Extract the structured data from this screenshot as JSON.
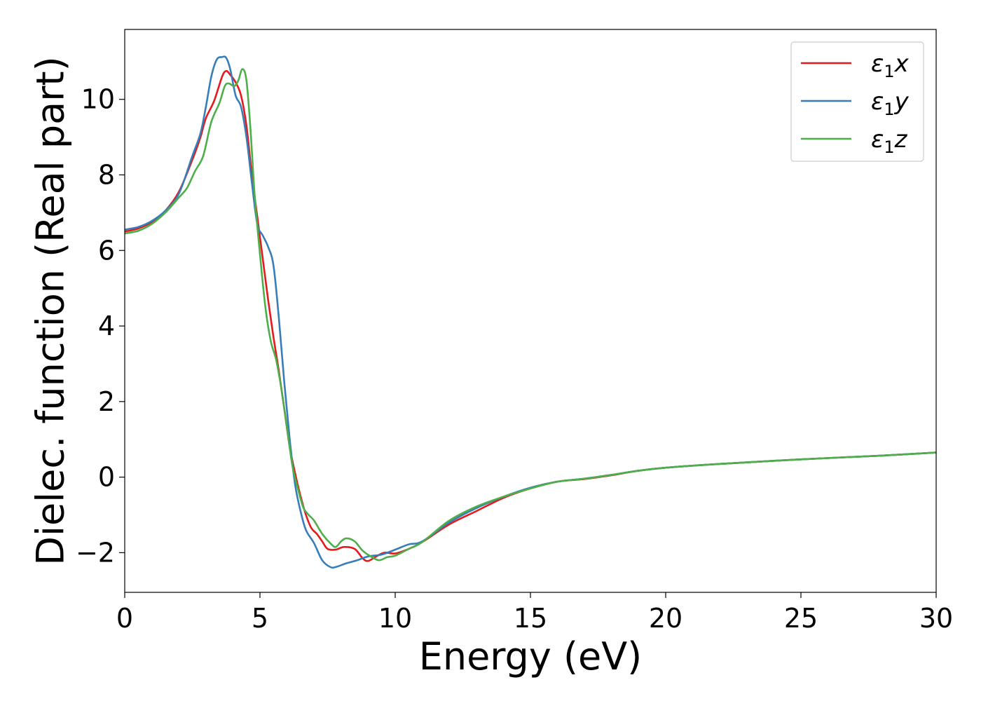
{
  "chart_data": {
    "type": "line",
    "title": "",
    "xlabel": "Energy (eV)",
    "ylabel": "Dielec. function (Real part)",
    "xlim": [
      0,
      30
    ],
    "ylim": [
      -3.05,
      11.85
    ],
    "xticks": [
      0,
      5,
      10,
      15,
      20,
      25,
      30
    ],
    "xtick_labels": [
      "0",
      "5",
      "10",
      "15",
      "20",
      "25",
      "30"
    ],
    "yticks": [
      -2,
      0,
      2,
      4,
      6,
      8,
      10
    ],
    "ytick_labels": [
      "−2",
      "0",
      "2",
      "4",
      "6",
      "8",
      "10"
    ],
    "grid": false,
    "legend": "top-right",
    "series": [
      {
        "name": "ε₁x",
        "label_base": "ε",
        "label_sub": "1",
        "label_suffix": "x",
        "color": "#e41a1c",
        "points": [
          [
            0,
            6.5
          ],
          [
            0.5,
            6.58
          ],
          [
            1,
            6.75
          ],
          [
            1.5,
            7.05
          ],
          [
            2,
            7.55
          ],
          [
            2.5,
            8.4
          ],
          [
            2.8,
            9.0
          ],
          [
            3.0,
            9.5
          ],
          [
            3.3,
            9.95
          ],
          [
            3.6,
            10.6
          ],
          [
            3.75,
            10.75
          ],
          [
            3.9,
            10.65
          ],
          [
            4.1,
            10.45
          ],
          [
            4.3,
            10.1
          ],
          [
            4.5,
            9.3
          ],
          [
            4.7,
            8.0
          ],
          [
            4.9,
            6.9
          ],
          [
            5.1,
            5.8
          ],
          [
            5.3,
            4.7
          ],
          [
            5.5,
            3.7
          ],
          [
            5.7,
            2.8
          ],
          [
            5.9,
            1.8
          ],
          [
            6.1,
            0.8
          ],
          [
            6.3,
            0.1
          ],
          [
            6.5,
            -0.5
          ],
          [
            6.7,
            -1.0
          ],
          [
            6.9,
            -1.35
          ],
          [
            7.1,
            -1.5
          ],
          [
            7.3,
            -1.7
          ],
          [
            7.5,
            -1.9
          ],
          [
            7.8,
            -1.92
          ],
          [
            8.1,
            -1.85
          ],
          [
            8.5,
            -1.9
          ],
          [
            8.8,
            -2.15
          ],
          [
            9.0,
            -2.22
          ],
          [
            9.3,
            -2.1
          ],
          [
            9.6,
            -2.0
          ],
          [
            10,
            -2.02
          ],
          [
            10.5,
            -1.9
          ],
          [
            11,
            -1.72
          ],
          [
            12,
            -1.25
          ],
          [
            13,
            -0.9
          ],
          [
            14,
            -0.55
          ],
          [
            15,
            -0.3
          ],
          [
            16,
            -0.12
          ],
          [
            17,
            -0.05
          ],
          [
            18,
            0.05
          ],
          [
            19,
            0.17
          ],
          [
            20,
            0.25
          ],
          [
            22,
            0.35
          ],
          [
            25,
            0.47
          ],
          [
            28,
            0.57
          ],
          [
            30,
            0.65
          ]
        ]
      },
      {
        "name": "ε₁y",
        "label_base": "ε",
        "label_sub": "1",
        "label_suffix": "y",
        "color": "#377eb8",
        "points": [
          [
            0,
            6.55
          ],
          [
            0.5,
            6.62
          ],
          [
            1,
            6.78
          ],
          [
            1.5,
            7.05
          ],
          [
            2,
            7.5
          ],
          [
            2.5,
            8.5
          ],
          [
            2.8,
            9.1
          ],
          [
            3.0,
            9.8
          ],
          [
            3.2,
            10.6
          ],
          [
            3.4,
            11.05
          ],
          [
            3.6,
            11.12
          ],
          [
            3.75,
            11.1
          ],
          [
            3.9,
            10.8
          ],
          [
            4.1,
            10.1
          ],
          [
            4.3,
            9.8
          ],
          [
            4.5,
            9.0
          ],
          [
            4.7,
            7.8
          ],
          [
            4.9,
            6.7
          ],
          [
            5.1,
            6.4
          ],
          [
            5.3,
            6.1
          ],
          [
            5.5,
            5.6
          ],
          [
            5.7,
            4.2
          ],
          [
            5.9,
            2.5
          ],
          [
            6.1,
            1.0
          ],
          [
            6.3,
            -0.2
          ],
          [
            6.5,
            -0.9
          ],
          [
            6.7,
            -1.4
          ],
          [
            7.0,
            -1.75
          ],
          [
            7.3,
            -2.2
          ],
          [
            7.6,
            -2.38
          ],
          [
            7.8,
            -2.38
          ],
          [
            8.2,
            -2.28
          ],
          [
            8.6,
            -2.2
          ],
          [
            9.0,
            -2.1
          ],
          [
            9.5,
            -2.05
          ],
          [
            10,
            -1.92
          ],
          [
            10.5,
            -1.78
          ],
          [
            11,
            -1.7
          ],
          [
            12,
            -1.2
          ],
          [
            13,
            -0.82
          ],
          [
            14,
            -0.52
          ],
          [
            15,
            -0.28
          ],
          [
            16,
            -0.12
          ],
          [
            17,
            -0.04
          ],
          [
            18,
            0.06
          ],
          [
            19,
            0.17
          ],
          [
            20,
            0.25
          ],
          [
            22,
            0.35
          ],
          [
            25,
            0.47
          ],
          [
            28,
            0.57
          ],
          [
            30,
            0.65
          ]
        ]
      },
      {
        "name": "ε₁z",
        "label_base": "ε",
        "label_sub": "1",
        "label_suffix": "z",
        "color": "#4daf4a",
        "points": [
          [
            0,
            6.45
          ],
          [
            0.5,
            6.52
          ],
          [
            1,
            6.7
          ],
          [
            1.5,
            7.0
          ],
          [
            2,
            7.4
          ],
          [
            2.3,
            7.65
          ],
          [
            2.6,
            8.1
          ],
          [
            2.9,
            8.5
          ],
          [
            3.2,
            9.4
          ],
          [
            3.5,
            9.9
          ],
          [
            3.7,
            10.35
          ],
          [
            3.85,
            10.42
          ],
          [
            4.05,
            10.35
          ],
          [
            4.2,
            10.5
          ],
          [
            4.35,
            10.8
          ],
          [
            4.5,
            10.5
          ],
          [
            4.65,
            9.2
          ],
          [
            4.8,
            7.5
          ],
          [
            5.0,
            5.9
          ],
          [
            5.2,
            4.5
          ],
          [
            5.4,
            3.6
          ],
          [
            5.6,
            3.1
          ],
          [
            5.8,
            2.3
          ],
          [
            6.0,
            1.3
          ],
          [
            6.2,
            0.3
          ],
          [
            6.4,
            -0.3
          ],
          [
            6.6,
            -0.8
          ],
          [
            6.8,
            -1.0
          ],
          [
            7.0,
            -1.15
          ],
          [
            7.3,
            -1.5
          ],
          [
            7.6,
            -1.75
          ],
          [
            7.8,
            -1.85
          ],
          [
            8.0,
            -1.7
          ],
          [
            8.2,
            -1.62
          ],
          [
            8.5,
            -1.7
          ],
          [
            8.8,
            -1.95
          ],
          [
            9.1,
            -2.1
          ],
          [
            9.4,
            -2.2
          ],
          [
            9.7,
            -2.12
          ],
          [
            10,
            -2.08
          ],
          [
            10.5,
            -1.9
          ],
          [
            11,
            -1.72
          ],
          [
            12,
            -1.15
          ],
          [
            13,
            -0.78
          ],
          [
            14,
            -0.52
          ],
          [
            15,
            -0.3
          ],
          [
            16,
            -0.12
          ],
          [
            17,
            -0.04
          ],
          [
            18,
            0.06
          ],
          [
            19,
            0.17
          ],
          [
            20,
            0.25
          ],
          [
            22,
            0.35
          ],
          [
            25,
            0.47
          ],
          [
            28,
            0.57
          ],
          [
            30,
            0.65
          ]
        ]
      }
    ]
  }
}
